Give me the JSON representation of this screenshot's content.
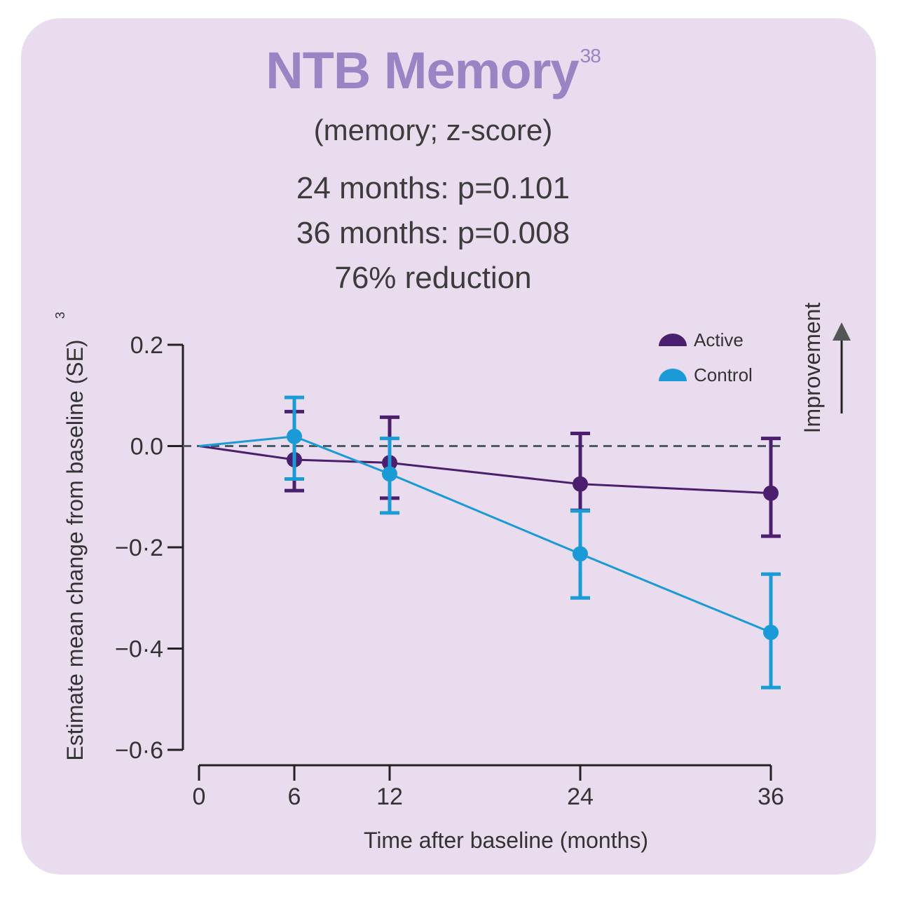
{
  "header": {
    "title": "NTB Memory",
    "title_superscript": "38",
    "subtitle": "(memory; z-score)",
    "stats": [
      "24  months: p=0.101",
      "36 months: p=0.008",
      "76% reduction"
    ]
  },
  "improvement_label": "Improvement",
  "colors": {
    "card_background": "#e8dcee",
    "title": "#9b84c4",
    "active": "#4b1f6e",
    "control": "#1a9ad6",
    "baseline_dash": "#4a5a66",
    "arrow": "#555555"
  },
  "chart_data": {
    "type": "line",
    "xlabel": "Time after baseline (months)",
    "ylabel": "Estimate mean change from baseline  (SE)",
    "ylabel_superscript": "3",
    "x_ticks": [
      0,
      6,
      12,
      24,
      36
    ],
    "x_tick_labels": [
      "0",
      "6",
      "12",
      "24",
      "36"
    ],
    "y_ticks": [
      0.2,
      0.0,
      -0.2,
      -0.4,
      -0.6
    ],
    "y_tick_labels": [
      "0.2",
      "0.0",
      "−0·2",
      "−0·4",
      "−0·6"
    ],
    "xlim": [
      0,
      36
    ],
    "ylim": [
      -0.6,
      0.2
    ],
    "reference_line": 0.0,
    "legend_position": "top-right",
    "series": [
      {
        "name": "Active",
        "color": "#4b1f6e",
        "x": [
          0,
          6,
          12,
          24,
          36
        ],
        "y": [
          0.0,
          -0.027,
          -0.033,
          -0.075,
          -0.093
        ],
        "err_low": [
          null,
          -0.088,
          -0.103,
          -0.127,
          -0.178
        ],
        "err_high": [
          null,
          0.068,
          0.057,
          0.025,
          0.015
        ]
      },
      {
        "name": "Control",
        "color": "#1a9ad6",
        "x": [
          0,
          6,
          12,
          24,
          36
        ],
        "y": [
          0.0,
          0.019,
          -0.055,
          -0.213,
          -0.368
        ],
        "err_low": [
          null,
          -0.065,
          -0.132,
          -0.3,
          -0.477
        ],
        "err_high": [
          null,
          0.096,
          0.015,
          -0.128,
          -0.253
        ]
      }
    ]
  }
}
